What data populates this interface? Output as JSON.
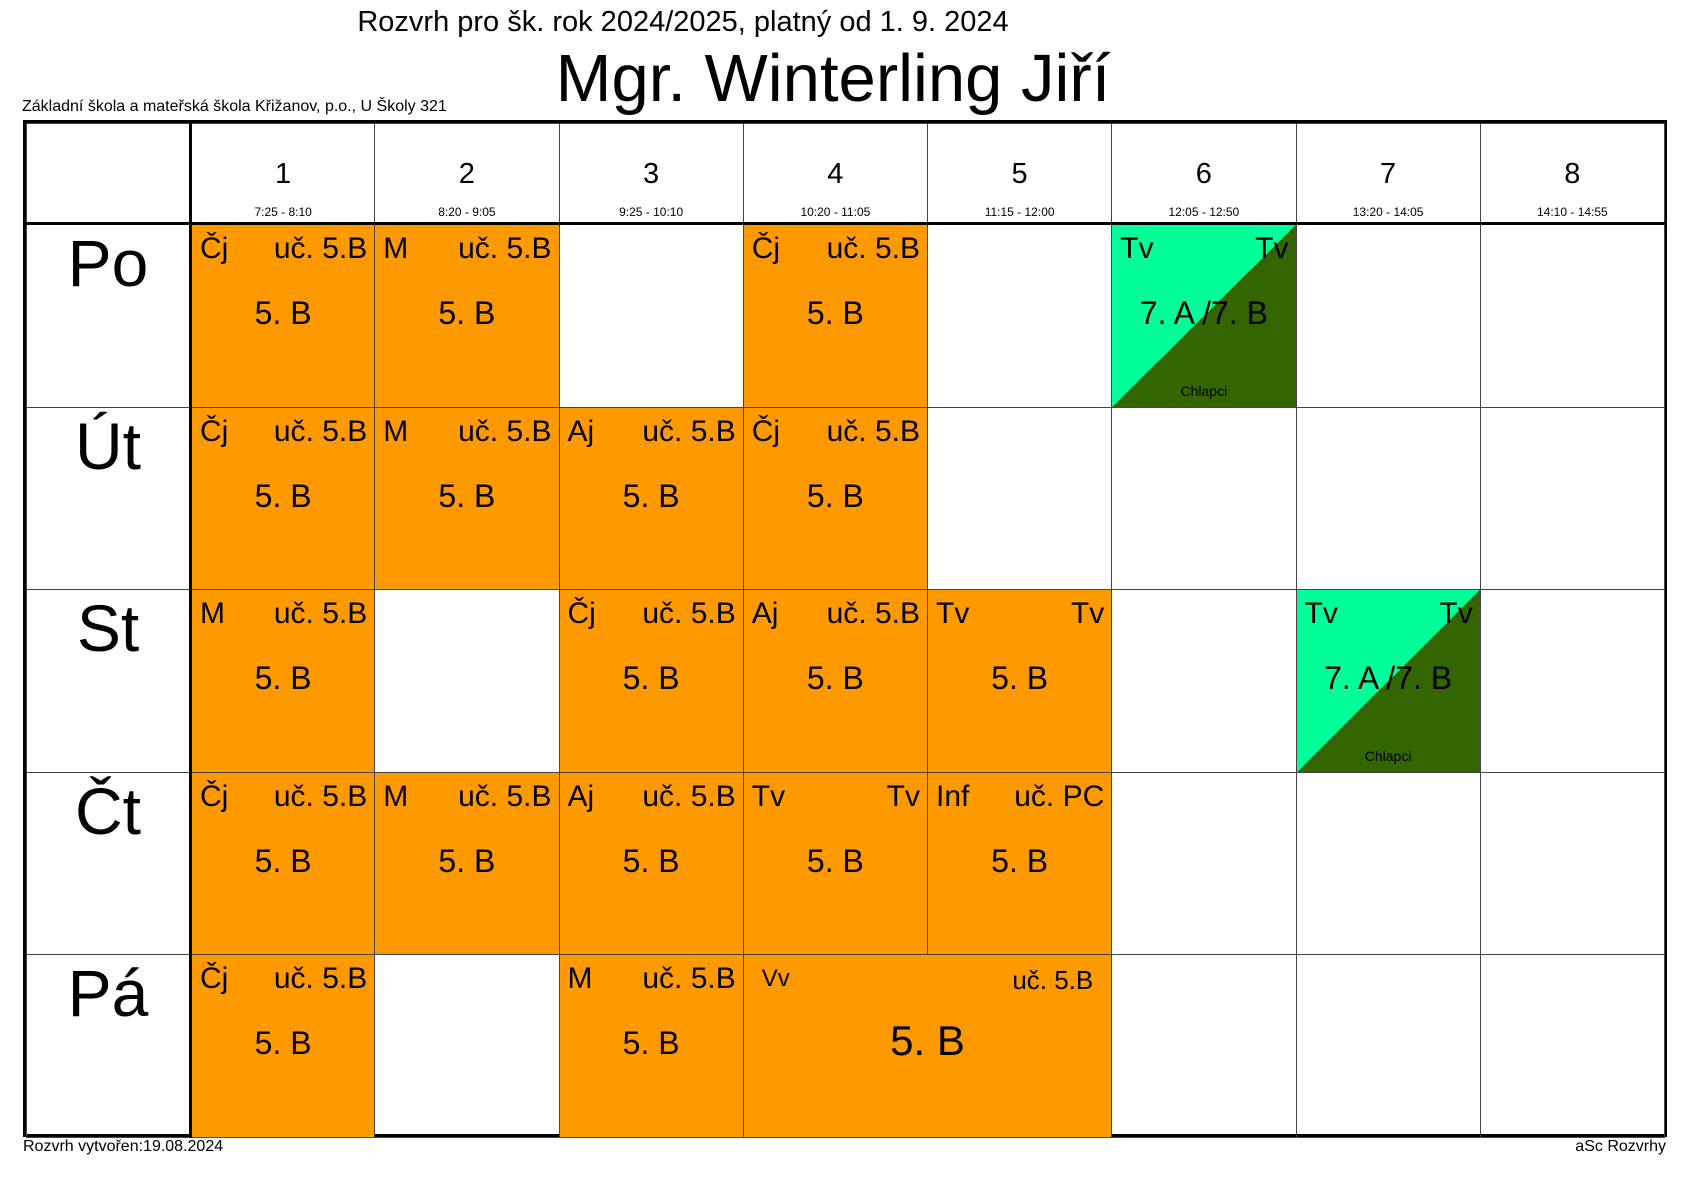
{
  "header": {
    "subtitle": "Rozvrh pro šk. rok 2024/2025, platný od 1. 9. 2024",
    "teacher": "Mgr. Winterling Jiří",
    "school": "Základní škola a mateřská škola Křižanov, p.o., U Školy 321"
  },
  "periods": [
    {
      "num": "1",
      "time": "7:25 - 8:10"
    },
    {
      "num": "2",
      "time": "8:20 - 9:05"
    },
    {
      "num": "3",
      "time": "9:25 - 10:10"
    },
    {
      "num": "4",
      "time": "10:20 - 11:05"
    },
    {
      "num": "5",
      "time": "11:15 - 12:00"
    },
    {
      "num": "6",
      "time": "12:05 - 12:50"
    },
    {
      "num": "7",
      "time": "13:20 - 14:05"
    },
    {
      "num": "8",
      "time": "14:10 - 14:55"
    }
  ],
  "days": [
    {
      "label": "Po",
      "cells": [
        {
          "type": "lesson",
          "subject": "Čj",
          "room": "uč. 5.B",
          "class": "5. B"
        },
        {
          "type": "lesson",
          "subject": "M",
          "room": "uč. 5.B",
          "class": "5. B"
        },
        {
          "type": "empty"
        },
        {
          "type": "lesson",
          "subject": "Čj",
          "room": "uč. 5.B",
          "class": "5. B"
        },
        {
          "type": "empty"
        },
        {
          "type": "group",
          "subject": "Tv",
          "room": "Tv",
          "class": "7. A /7. B",
          "group": "Chlapci"
        },
        {
          "type": "empty"
        },
        {
          "type": "empty"
        }
      ]
    },
    {
      "label": "Út",
      "cells": [
        {
          "type": "lesson",
          "subject": "Čj",
          "room": "uč. 5.B",
          "class": "5. B"
        },
        {
          "type": "lesson",
          "subject": "M",
          "room": "uč. 5.B",
          "class": "5. B"
        },
        {
          "type": "lesson",
          "subject": "Aj",
          "room": "uč. 5.B",
          "class": "5. B"
        },
        {
          "type": "lesson",
          "subject": "Čj",
          "room": "uč. 5.B",
          "class": "5. B"
        },
        {
          "type": "empty"
        },
        {
          "type": "empty"
        },
        {
          "type": "empty"
        },
        {
          "type": "empty"
        }
      ]
    },
    {
      "label": "St",
      "cells": [
        {
          "type": "lesson",
          "subject": "M",
          "room": "uč. 5.B",
          "class": "5. B"
        },
        {
          "type": "empty"
        },
        {
          "type": "lesson",
          "subject": "Čj",
          "room": "uč. 5.B",
          "class": "5. B"
        },
        {
          "type": "lesson",
          "subject": "Aj",
          "room": "uč. 5.B",
          "class": "5. B"
        },
        {
          "type": "lesson",
          "subject": "Tv",
          "room": "Tv",
          "class": "5. B"
        },
        {
          "type": "empty"
        },
        {
          "type": "group",
          "subject": "Tv",
          "room": "Tv",
          "class": "7. A /7. B",
          "group": "Chlapci"
        },
        {
          "type": "empty"
        }
      ]
    },
    {
      "label": "Čt",
      "cells": [
        {
          "type": "lesson",
          "subject": "Čj",
          "room": "uč. 5.B",
          "class": "5. B"
        },
        {
          "type": "lesson",
          "subject": "M",
          "room": "uč. 5.B",
          "class": "5. B"
        },
        {
          "type": "lesson",
          "subject": "Aj",
          "room": "uč. 5.B",
          "class": "5. B"
        },
        {
          "type": "lesson",
          "subject": "Tv",
          "room": "Tv",
          "class": "5. B"
        },
        {
          "type": "lesson",
          "subject": "Inf",
          "room": "uč. PC",
          "class": "5. B"
        },
        {
          "type": "empty"
        },
        {
          "type": "empty"
        },
        {
          "type": "empty"
        }
      ]
    },
    {
      "label": "Pá",
      "cells": [
        {
          "type": "lesson",
          "subject": "Čj",
          "room": "uč. 5.B",
          "class": "5. B"
        },
        {
          "type": "empty"
        },
        {
          "type": "lesson",
          "subject": "M",
          "room": "uč. 5.B",
          "class": "5. B"
        },
        {
          "type": "wide",
          "span": 2,
          "subject": "Vv",
          "room": "uč. 5.B",
          "class": "5. B"
        },
        {
          "type": "empty"
        },
        {
          "type": "empty"
        },
        {
          "type": "empty"
        }
      ]
    }
  ],
  "footer": {
    "created": "Rozvrh vytvořen:19.08.2024",
    "software": "aSc Rozvrhy"
  },
  "colors": {
    "lesson": "#FF9900",
    "group_light": "#00FF99",
    "group_dark": "#336600"
  }
}
